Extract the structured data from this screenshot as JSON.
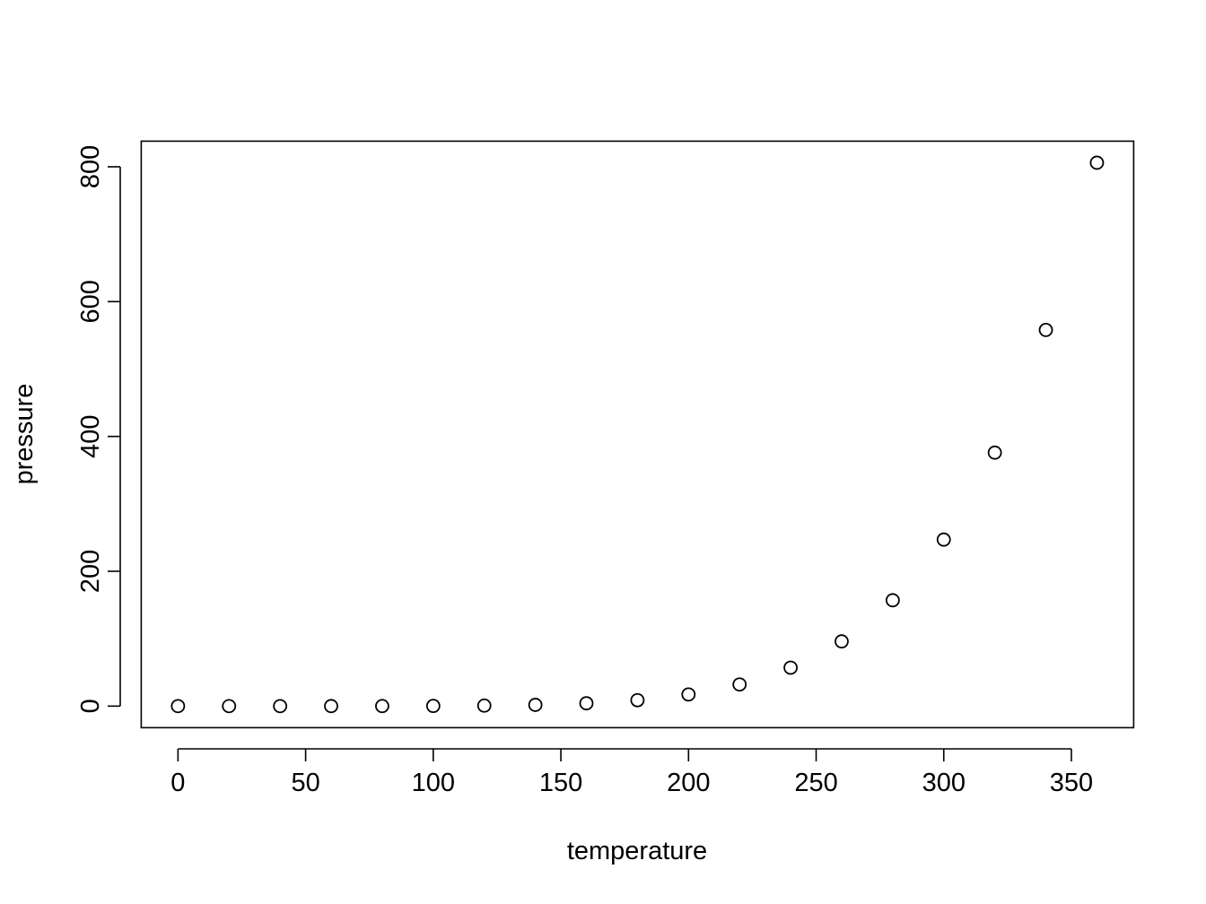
{
  "chart_data": {
    "type": "scatter",
    "title": "",
    "xlabel": "temperature",
    "ylabel": "pressure",
    "xlim": [
      -14.4,
      374.4
    ],
    "ylim": [
      -32,
      838
    ],
    "grid": false,
    "legend": "none",
    "point_style": "open-circle",
    "colors": {
      "points": "#000000",
      "axes": "#000000",
      "background": "#ffffff"
    },
    "x_ticks": [
      0,
      50,
      100,
      150,
      200,
      250,
      300,
      350
    ],
    "x_tick_labels": [
      "0",
      "50",
      "100",
      "150",
      "200",
      "250",
      "300",
      "350"
    ],
    "y_ticks": [
      0,
      200,
      400,
      600,
      800
    ],
    "y_tick_labels": [
      "0",
      "200",
      "400",
      "600",
      "800"
    ],
    "series": [
      {
        "x": [
          0,
          20,
          40,
          60,
          80,
          100,
          120,
          140,
          160,
          180,
          200,
          220,
          240,
          260,
          280,
          300,
          320,
          340,
          360
        ],
        "y": [
          0.0002,
          0.0012,
          0.006,
          0.03,
          0.09,
          0.27,
          0.75,
          1.85,
          4.2,
          8.8,
          17.3,
          32.1,
          57,
          96,
          157,
          247,
          376,
          558,
          806
        ]
      }
    ]
  }
}
